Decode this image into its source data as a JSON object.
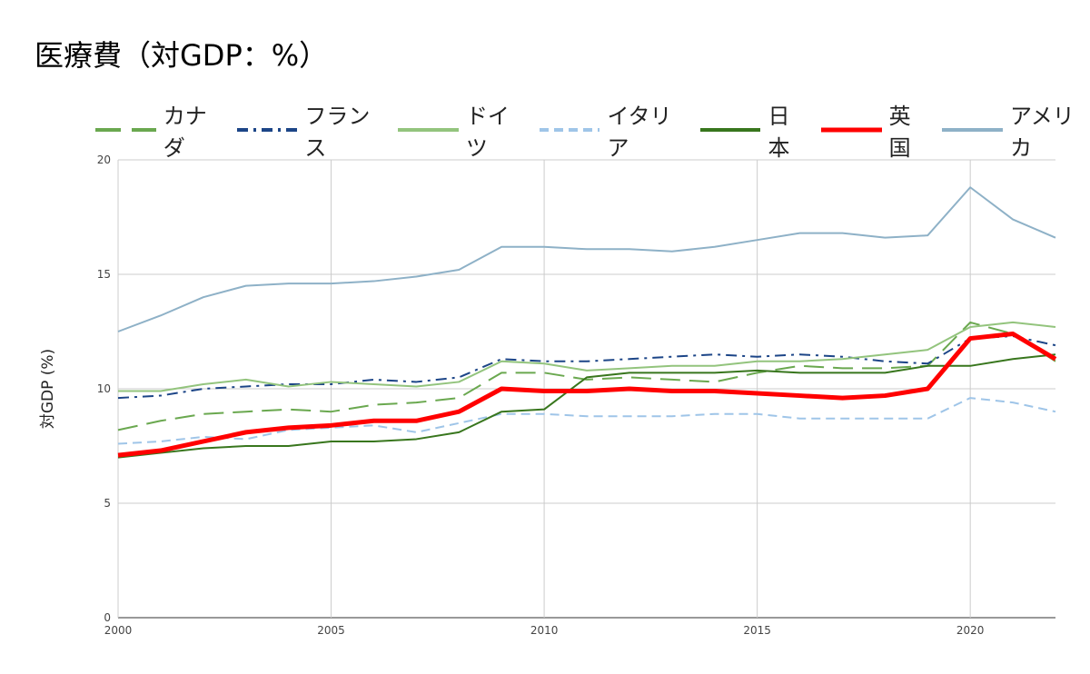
{
  "chart_data": {
    "type": "line",
    "title": "医療費（対GDP：%）",
    "xlabel": "",
    "ylabel": "対GDP (%)",
    "xlim": [
      2000,
      2022
    ],
    "ylim": [
      0,
      20
    ],
    "x_ticks": [
      "2000",
      "2005",
      "2010",
      "2015",
      "2020"
    ],
    "y_ticks": [
      "0",
      "5",
      "10",
      "15",
      "20"
    ],
    "grid": true,
    "legend_position": "top",
    "x": [
      2000,
      2001,
      2002,
      2003,
      2004,
      2005,
      2006,
      2007,
      2008,
      2009,
      2010,
      2011,
      2012,
      2013,
      2014,
      2015,
      2016,
      2017,
      2018,
      2019,
      2020,
      2021,
      2022
    ],
    "series": [
      {
        "name": "カナダ",
        "color": "#6aa84f",
        "style": "dash",
        "values": [
          8.2,
          8.6,
          8.9,
          9.0,
          9.1,
          9.0,
          9.3,
          9.4,
          9.6,
          10.7,
          10.7,
          10.4,
          10.5,
          10.4,
          10.3,
          10.7,
          11.0,
          10.9,
          10.9,
          11.0,
          12.9,
          12.4,
          11.2
        ]
      },
      {
        "name": "フランス",
        "color": "#1c4587",
        "style": "dashdot",
        "values": [
          9.6,
          9.7,
          10.0,
          10.1,
          10.2,
          10.2,
          10.4,
          10.3,
          10.5,
          11.3,
          11.2,
          11.2,
          11.3,
          11.4,
          11.5,
          11.4,
          11.5,
          11.4,
          11.2,
          11.1,
          12.2,
          12.3,
          11.9
        ]
      },
      {
        "name": "ドイツ",
        "color": "#93c47d",
        "style": "solid",
        "values": [
          9.9,
          9.9,
          10.2,
          10.4,
          10.1,
          10.3,
          10.2,
          10.1,
          10.3,
          11.2,
          11.1,
          10.8,
          10.9,
          11.0,
          11.0,
          11.2,
          11.2,
          11.3,
          11.5,
          11.7,
          12.7,
          12.9,
          12.7
        ]
      },
      {
        "name": "イタリア",
        "color": "#9fc5e8",
        "style": "shortdash",
        "values": [
          7.6,
          7.7,
          7.9,
          7.8,
          8.2,
          8.3,
          8.4,
          8.1,
          8.5,
          8.9,
          8.9,
          8.8,
          8.8,
          8.8,
          8.9,
          8.9,
          8.7,
          8.7,
          8.7,
          8.7,
          9.6,
          9.4,
          9.0
        ]
      },
      {
        "name": "日本",
        "color": "#38761d",
        "style": "solid",
        "values": [
          7.0,
          7.2,
          7.4,
          7.5,
          7.5,
          7.7,
          7.7,
          7.8,
          8.1,
          9.0,
          9.1,
          10.5,
          10.7,
          10.7,
          10.7,
          10.8,
          10.7,
          10.7,
          10.7,
          11.0,
          11.0,
          11.3,
          11.5
        ]
      },
      {
        "name": "英国",
        "color": "#ff0000",
        "style": "thick",
        "values": [
          7.1,
          7.3,
          7.7,
          8.1,
          8.3,
          8.4,
          8.6,
          8.6,
          9.0,
          10.0,
          9.9,
          9.9,
          10.0,
          9.9,
          9.9,
          9.8,
          9.7,
          9.6,
          9.7,
          10.0,
          12.2,
          12.4,
          11.3
        ]
      },
      {
        "name": "アメリカ",
        "color": "#8eb1c7",
        "style": "solid",
        "values": [
          12.5,
          13.2,
          14.0,
          14.5,
          14.6,
          14.6,
          14.7,
          14.9,
          15.2,
          16.2,
          16.2,
          16.1,
          16.1,
          16.0,
          16.2,
          16.5,
          16.8,
          16.8,
          16.6,
          16.7,
          18.8,
          17.4,
          16.6
        ]
      }
    ]
  }
}
